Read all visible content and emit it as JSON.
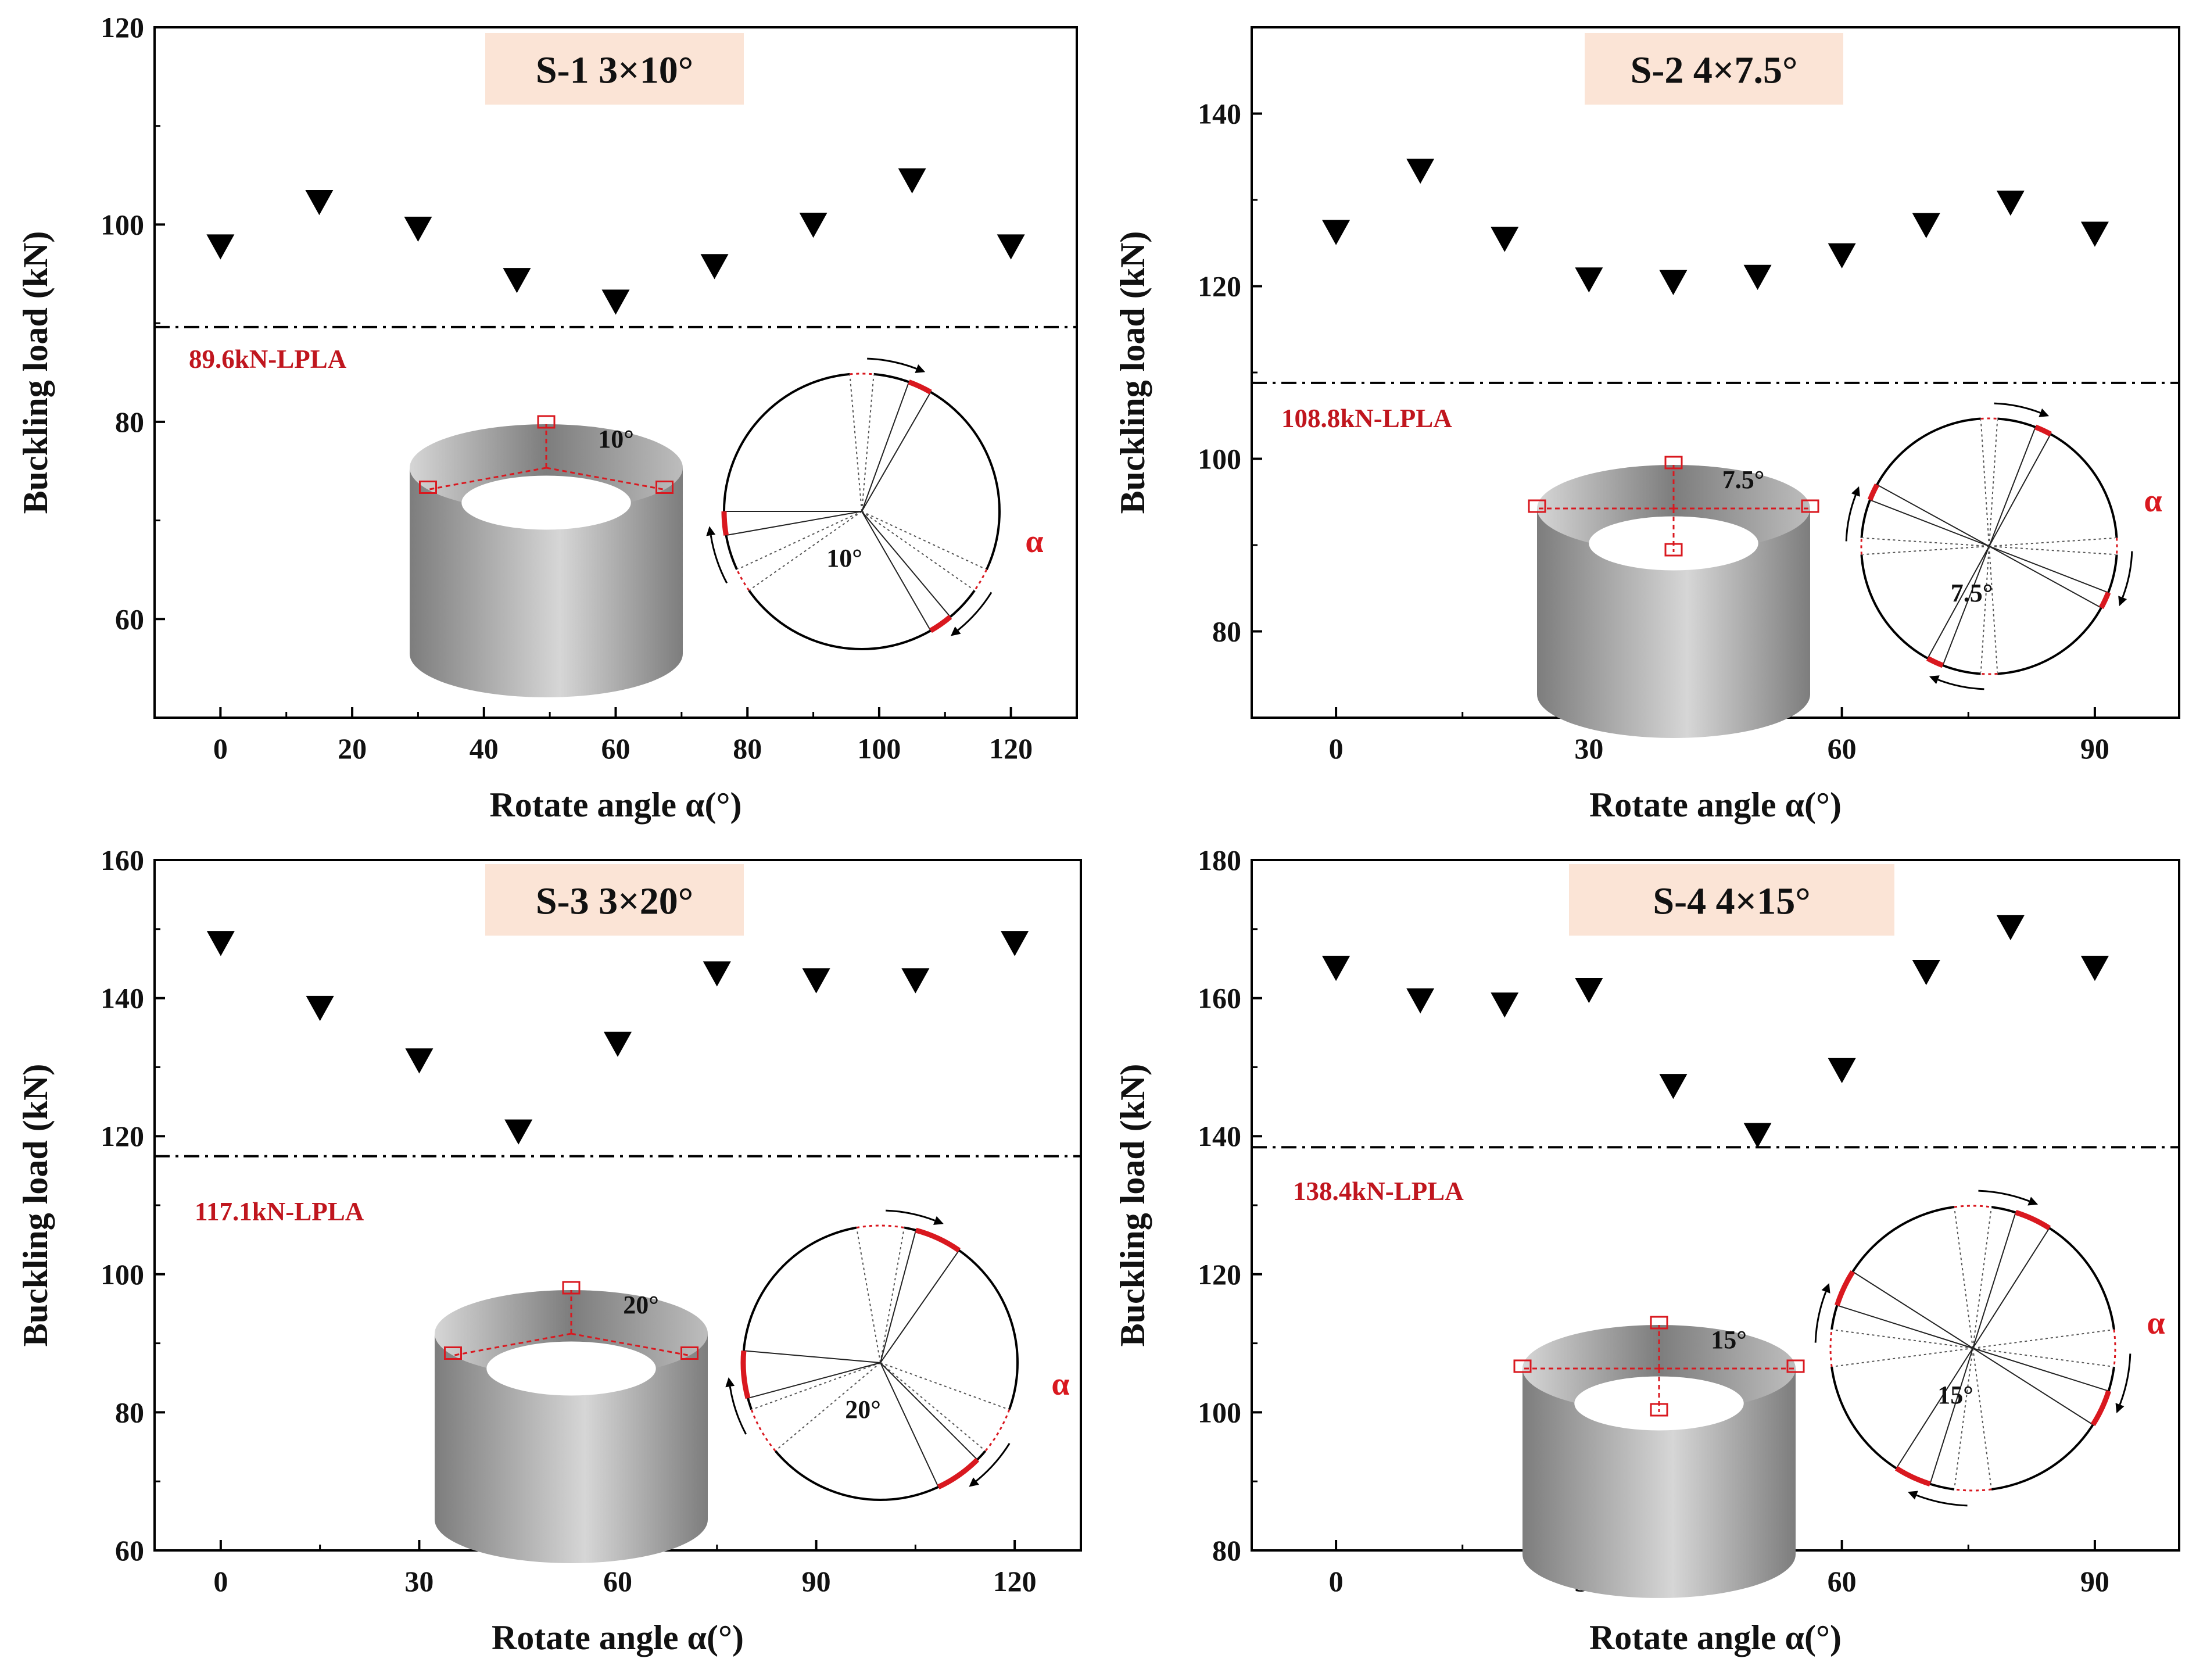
{
  "colors": {
    "marker": "#000000",
    "reference_line": "#000000",
    "reference_label": "#c0161e",
    "title_box": "#fbe4d6",
    "axis": "#000000",
    "highlight_red": "#d9181f",
    "cylinder_dark": "#7d7d7d",
    "cylinder_light": "#d6d6d6"
  },
  "chart_data": [
    {
      "type": "scatter",
      "title": "S-1 3×10°",
      "xlabel": "Rotate angle α(°)",
      "ylabel": "Buckling load (kN)",
      "xlim": [
        -10,
        130
      ],
      "ylim": [
        50,
        120
      ],
      "xticks": [
        0,
        20,
        40,
        60,
        80,
        100,
        120
      ],
      "yticks": [
        60,
        80,
        100,
        120
      ],
      "x": [
        0,
        15,
        30,
        45,
        60,
        75,
        90,
        105,
        120
      ],
      "y": [
        97.8,
        102.3,
        99.6,
        94.4,
        92.2,
        95.8,
        100.0,
        104.5,
        97.8
      ],
      "reference": {
        "value": 89.6,
        "label": "89.6kN-LPLA"
      },
      "annotations": {
        "angle_cylinder": "10°",
        "angle_circle": "10°",
        "rotation": "α"
      }
    },
    {
      "type": "scatter",
      "title": "S-2 4×7.5°",
      "xlabel": "Rotate angle α(°)",
      "ylabel": "Buckling load (kN)",
      "xlim": [
        -10,
        100
      ],
      "ylim": [
        70,
        150
      ],
      "xticks": [
        0,
        30,
        60,
        90
      ],
      "yticks": [
        80,
        100,
        120,
        140
      ],
      "x": [
        0,
        10,
        20,
        30,
        40,
        50,
        60,
        70,
        80,
        90
      ],
      "y": [
        126.3,
        133.4,
        125.5,
        120.8,
        120.5,
        121.1,
        123.6,
        127.1,
        129.7,
        126.1
      ],
      "reference": {
        "value": 108.8,
        "label": "108.8kN-LPLA"
      },
      "annotations": {
        "angle_cylinder": "7.5°",
        "angle_circle": "7.5°",
        "rotation": "α"
      }
    },
    {
      "type": "scatter",
      "title": "S-3 3×20°",
      "xlabel": "Rotate angle α(°)",
      "ylabel": "Buckling load (kN)",
      "xlim": [
        -10,
        130
      ],
      "ylim": [
        60,
        160
      ],
      "xticks": [
        0,
        30,
        60,
        90,
        120
      ],
      "yticks": [
        60,
        80,
        100,
        120,
        140,
        160
      ],
      "x": [
        0,
        15,
        30,
        45,
        60,
        75,
        90,
        105,
        120
      ],
      "y": [
        148.0,
        138.6,
        131.0,
        120.7,
        133.4,
        143.6,
        142.6,
        142.6,
        148.0
      ],
      "reference": {
        "value": 117.1,
        "label": "117.1kN-LPLA"
      },
      "annotations": {
        "angle_cylinder": "20°",
        "angle_circle": "20°",
        "rotation": "α"
      }
    },
    {
      "type": "scatter",
      "title": "S-4 4×15°",
      "xlabel": "Rotate angle α(°)",
      "ylabel": "Buckling load (kN)",
      "xlim": [
        -10,
        100
      ],
      "ylim": [
        80,
        180
      ],
      "xticks": [
        0,
        30,
        60,
        90
      ],
      "yticks": [
        80,
        100,
        120,
        140,
        160,
        180
      ],
      "x": [
        0,
        10,
        20,
        30,
        40,
        50,
        60,
        70,
        80,
        90
      ],
      "y": [
        164.4,
        159.7,
        159.1,
        161.2,
        147.3,
        140.2,
        149.6,
        163.8,
        170.3,
        164.4
      ],
      "reference": {
        "value": 138.4,
        "label": "138.4kN-LPLA"
      },
      "annotations": {
        "angle_cylinder": "15°",
        "angle_circle": "15°",
        "rotation": "α"
      }
    }
  ]
}
